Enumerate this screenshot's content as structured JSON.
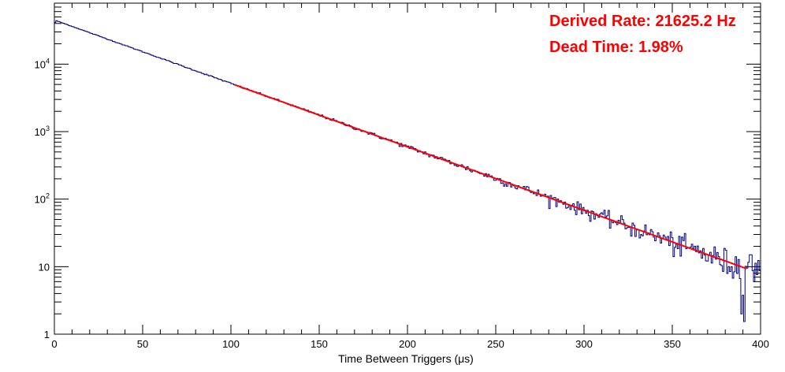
{
  "chart_data": {
    "type": "line",
    "xlabel": "Time Between Triggers (μs)",
    "ylabel": "",
    "xlim": [
      0,
      400
    ],
    "ylim": [
      1,
      80000
    ],
    "yscale": "log",
    "x_ticks": [
      0,
      50,
      100,
      150,
      200,
      250,
      300,
      350,
      400
    ],
    "y_ticks": [
      {
        "value": 1,
        "label": "1"
      },
      {
        "value": 10,
        "label": "10"
      },
      {
        "value": 100,
        "label": "10",
        "exp": "2"
      },
      {
        "value": 1000,
        "label": "10",
        "exp": "3"
      },
      {
        "value": 10000,
        "label": "10",
        "exp": "4"
      }
    ],
    "grid": false,
    "series": [
      {
        "kind": "histogram",
        "color": "#000080",
        "model": {
          "amplitude": 45000,
          "rate_per_us": 0.021625,
          "x_start": 0,
          "x_end": 400,
          "bin_width": 0.8
        },
        "points": [
          [
            0,
            42000
          ],
          [
            1,
            46000
          ],
          [
            3,
            45500
          ],
          [
            5,
            42500
          ],
          [
            10,
            41000
          ],
          [
            20,
            33000
          ],
          [
            30,
            27000
          ],
          [
            40,
            22000
          ],
          [
            50,
            18000
          ],
          [
            60,
            15000
          ],
          [
            70,
            12000
          ],
          [
            80,
            10000
          ],
          [
            90,
            7800
          ],
          [
            100,
            6100
          ],
          [
            150,
            2000
          ],
          [
            200,
            700
          ],
          [
            250,
            230
          ],
          [
            300,
            75
          ],
          [
            350,
            27
          ],
          [
            380,
            13
          ],
          [
            390,
            2
          ],
          [
            395,
            14
          ],
          [
            400,
            7
          ]
        ]
      },
      {
        "kind": "fit",
        "color": "#ff0000",
        "x_range": [
          102,
          392
        ],
        "model": {
          "amplitude": 45000,
          "rate_per_us": 0.021625
        }
      }
    ],
    "annotations": [
      {
        "text": "Derived Rate: 21625.2 Hz",
        "color": "#ff0000"
      },
      {
        "text": "Dead Time: 1.98%",
        "color": "#ff0000"
      }
    ]
  }
}
